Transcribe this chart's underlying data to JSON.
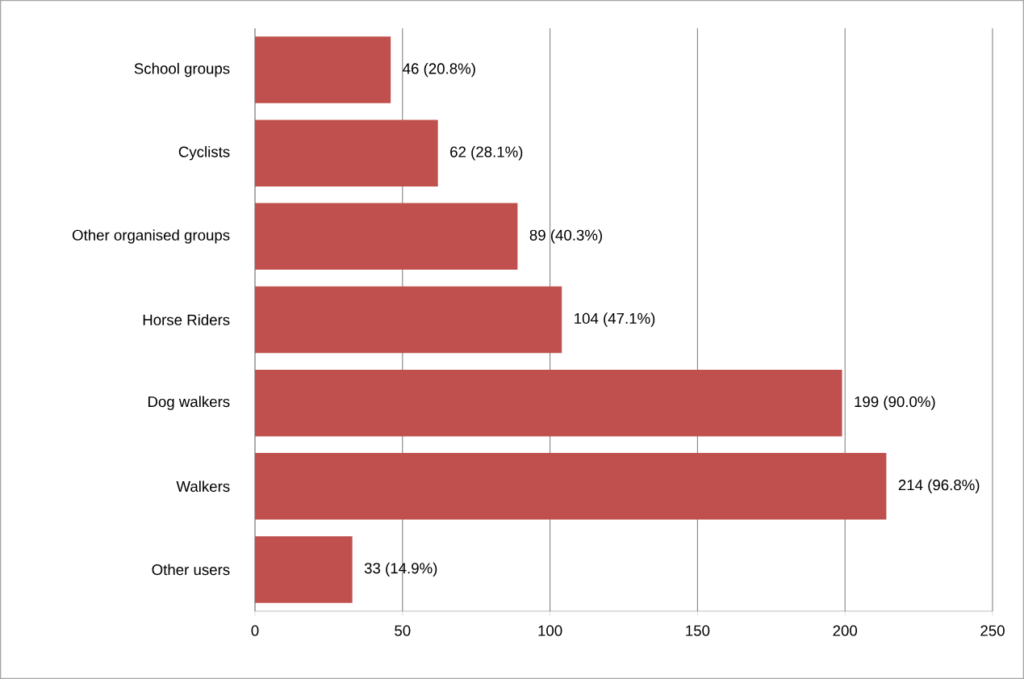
{
  "chart_data": {
    "type": "bar",
    "orientation": "horizontal",
    "categories": [
      "School groups",
      "Cyclists",
      "Other organised groups",
      "Horse Riders",
      "Dog walkers",
      "Walkers",
      "Other users"
    ],
    "values": [
      46,
      62,
      89,
      104,
      199,
      214,
      33
    ],
    "value_labels": [
      "46 (20.8%)",
      "62 (28.1%)",
      "89 (40.3%)",
      "104 (47.1%)",
      "199 (90.0%)",
      "214 (96.8%)",
      "33 (14.9%)"
    ],
    "color": "#c0504d",
    "xlim": [
      0,
      250
    ],
    "xticks": [
      0,
      50,
      100,
      150,
      200,
      250
    ],
    "grid": "x"
  }
}
